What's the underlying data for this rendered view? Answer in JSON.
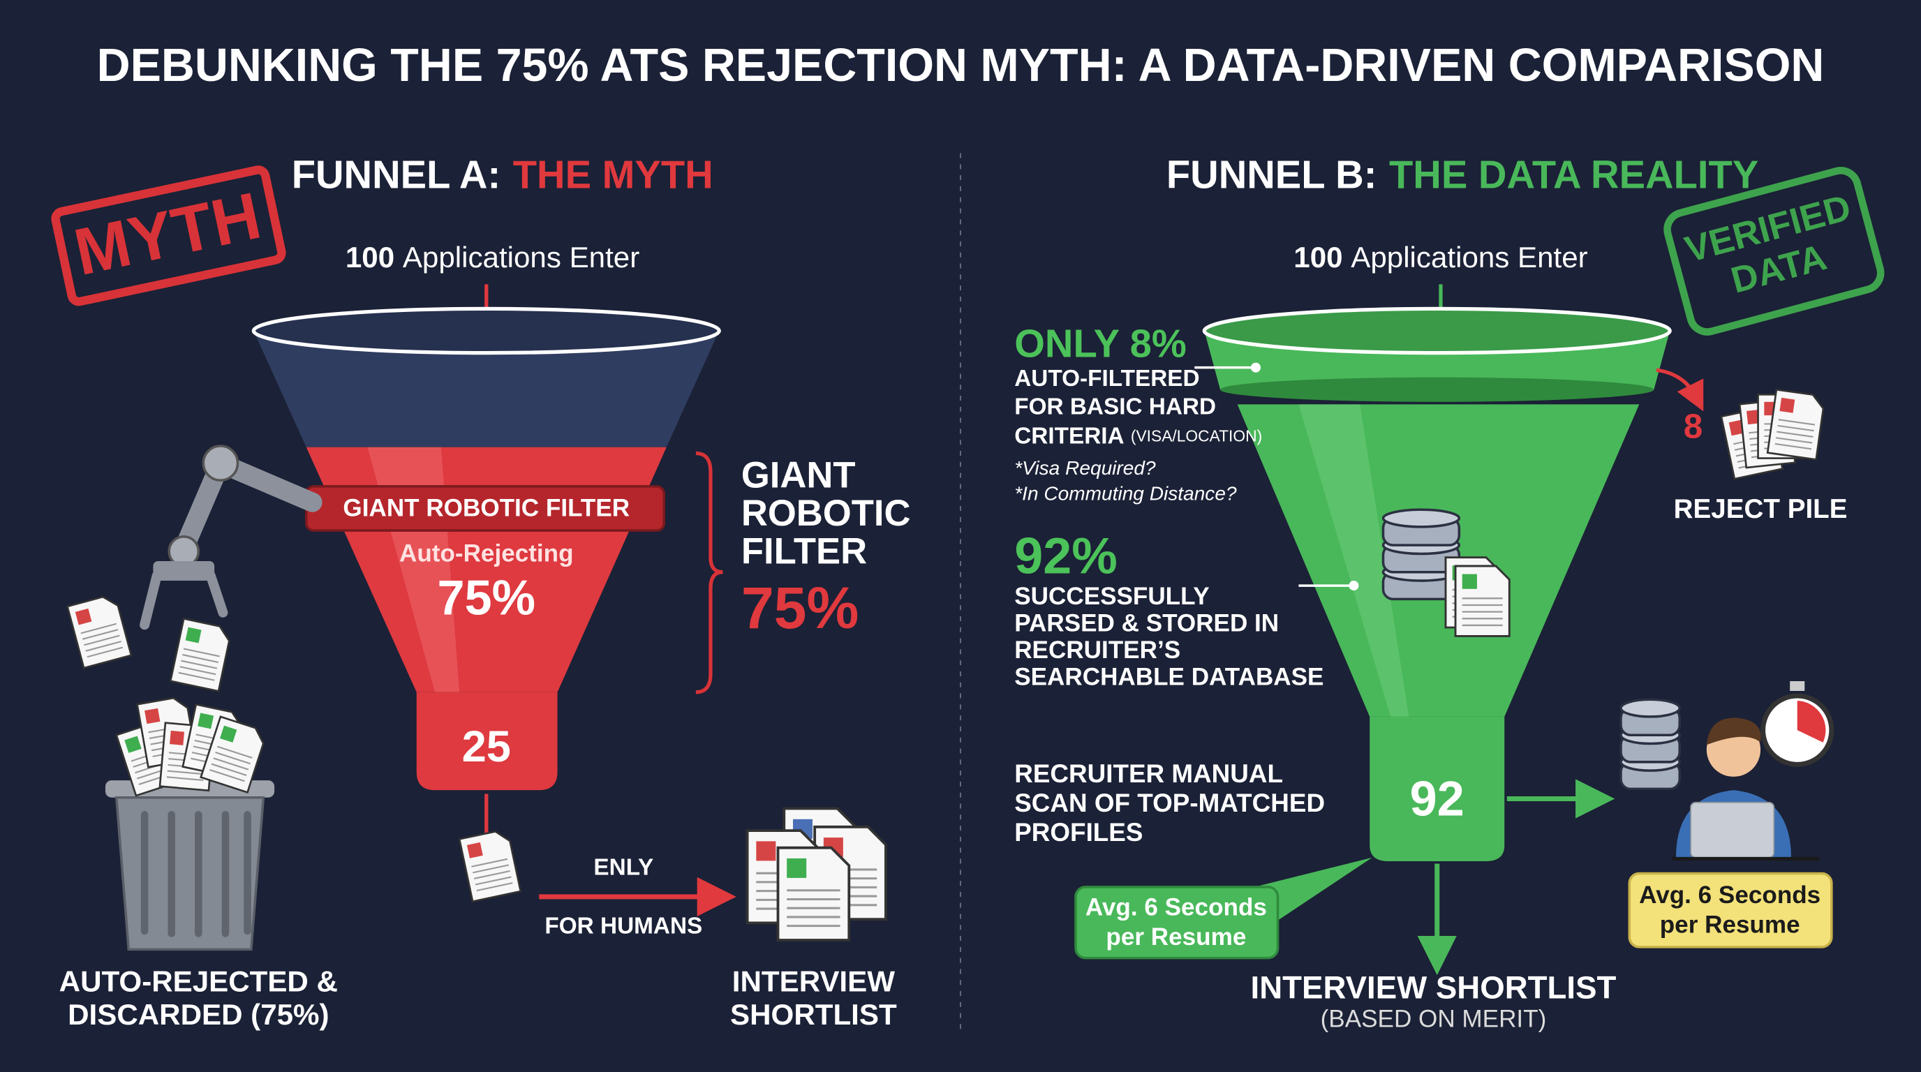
{
  "title": "DEBUNKING THE 75% ATS REJECTION MYTH: A DATA-DRIVEN COMPARISON",
  "funnel_a": {
    "heading_prefix": "FUNNEL A:",
    "heading_highlight": "THE MYTH",
    "stamp": "MYTH",
    "entry_count": "100",
    "entry_label": "Applications Enter",
    "filter_banner": "GIANT ROBOTIC FILTER",
    "filter_sub": "Auto-Rejecting",
    "filter_percent": "75%",
    "side_label": [
      "GIANT",
      "ROBOTIC",
      "FILTER"
    ],
    "side_percent": "75%",
    "output_count": "25",
    "arrow_top": "ENLY",
    "arrow_bottom": "FOR HUMANS",
    "discard_label": [
      "AUTO-REJECTED &",
      "DISCARDED (75%)"
    ],
    "shortlist_label": [
      "INTERVIEW",
      "SHORTLIST"
    ]
  },
  "funnel_b": {
    "heading_prefix": "FUNNEL B:",
    "heading_highlight": "THE DATA REALITY",
    "stamp": [
      "VERIFIED",
      "DATA"
    ],
    "entry_count": "100",
    "entry_label": "Applications Enter",
    "filtered_headline": "ONLY 8%",
    "filtered_lines": [
      "AUTO-FILTERED",
      "FOR BASIC HARD",
      "CRITERIA"
    ],
    "filtered_note": "(VISA/LOCATION)",
    "criteria": [
      "*Visa Required?",
      "*In Commuting Distance?"
    ],
    "reject_count": "8",
    "reject_label": "REJECT PILE",
    "stored_headline": "92%",
    "stored_lines": [
      "SUCCESSFULLY",
      "PARSED & STORED IN",
      "RECRUITER’S",
      "SEARCHABLE DATABASE"
    ],
    "scan_lines": [
      "RECRUITER MANUAL",
      "SCAN OF TOP-MATCHED",
      "PROFILES"
    ],
    "output_count": "92",
    "green_callout": [
      "Avg. 6 Seconds",
      "per Resume"
    ],
    "yellow_callout": [
      "Avg. 6 Seconds",
      "per Resume"
    ],
    "shortlist_label": "INTERVIEW SHORTLIST",
    "shortlist_note": "(BASED ON MERIT)"
  }
}
